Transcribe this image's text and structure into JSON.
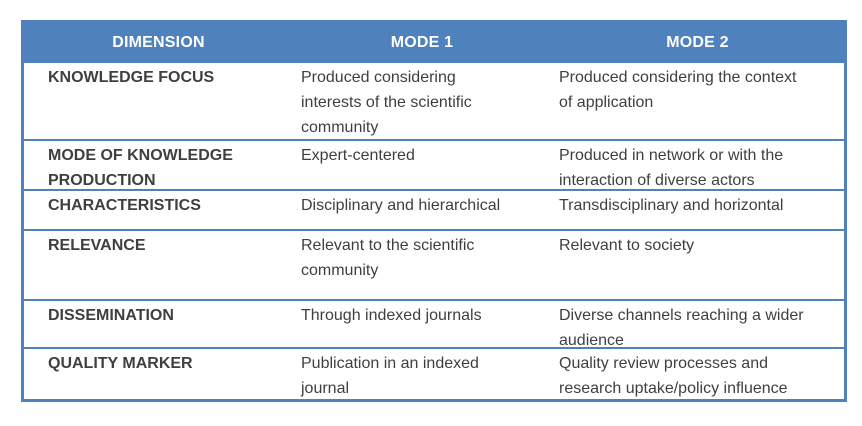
{
  "colors": {
    "header_background": "#4f81bd",
    "border": "#4f81bd",
    "header_text": "#ffffff",
    "body_text": "#3f3f3f",
    "page_background": "#ffffff"
  },
  "table": {
    "header": [
      "DIMENSION",
      "MODE 1",
      "MODE 2"
    ],
    "rows": [
      {
        "dimension": "KNOWLEDGE FOCUS",
        "mode1": [
          "Produced considering",
          "interests of the scientific",
          "community"
        ],
        "mode2": [
          "Produced considering the context",
          "of application"
        ]
      },
      {
        "dimension": [
          "MODE OF KNOWLEDGE",
          "PRODUCTION"
        ],
        "mode1": "Expert-centered",
        "mode2": [
          "Produced in network or with the",
          "interaction of diverse actors"
        ]
      },
      {
        "dimension": "CHARACTERISTICS",
        "mode1": "Disciplinary and hierarchical",
        "mode2": "Transdisciplinary and horizontal"
      },
      {
        "dimension": "RELEVANCE",
        "mode1": [
          "Relevant to the scientific",
          "community"
        ],
        "mode2": "Relevant to society"
      },
      {
        "dimension": "DISSEMINATION",
        "mode1": "Through indexed journals",
        "mode2": [
          "Diverse channels reaching a wider",
          "audience"
        ]
      },
      {
        "dimension": "QUALITY MARKER",
        "mode1": [
          "Publication in an indexed",
          "journal"
        ],
        "mode2": [
          "Quality review processes and",
          "research uptake/policy influence"
        ]
      }
    ]
  }
}
